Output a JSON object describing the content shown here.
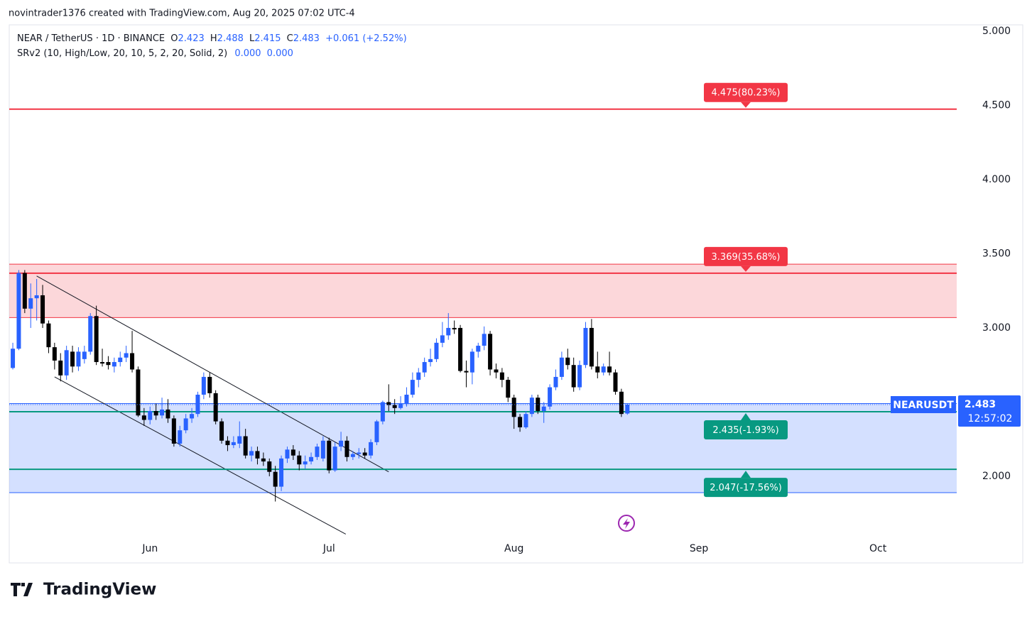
{
  "header": {
    "credit": "novintrader1376 created with TradingView.com, Aug 20, 2025 07:02 UTC-4",
    "brand": "TradingView"
  },
  "legend": {
    "symbol": "NEAR / TetherUS · 1D · BINANCE",
    "o": "O",
    "h": "H",
    "l": "L",
    "c": "C",
    "change": "+0.061 (+2.52%)",
    "indicator": "SRv2 (10, High/Low, 20, 10, 5, 2, 20, Solid, 2)",
    "ind_v1": "0.000",
    "ind_v2": "0.000"
  },
  "price_tag": {
    "ticker": "NEARUSDT",
    "countdown": "12:57:02"
  },
  "chart_data": {
    "type": "candlestick",
    "up_color": "#2962ff",
    "down_color": "#000000",
    "open": [
      2.73,
      2.86,
      3.37,
      3.13,
      3.2,
      3.22,
      3.03,
      2.87,
      2.78,
      2.68,
      2.84,
      2.74,
      2.79,
      2.84,
      3.08,
      2.77,
      2.77,
      2.74,
      2.77,
      2.8,
      2.83,
      2.72,
      2.41,
      2.38,
      2.44,
      2.41,
      2.45,
      2.39,
      2.22,
      2.31,
      2.39,
      2.42,
      2.55,
      2.67,
      2.56,
      2.37,
      2.24,
      2.21,
      2.22,
      2.27,
      2.14,
      2.17,
      2.12,
      2.1,
      2.03,
      1.93,
      2.12,
      2.18,
      2.14,
      2.08,
      2.1,
      2.13,
      2.12,
      2.24,
      2.04,
      2.2,
      2.24,
      2.13,
      2.15,
      2.16,
      2.14,
      2.23,
      2.37,
      2.5,
      2.48,
      2.46,
      2.49,
      2.55,
      2.65,
      2.7,
      2.77,
      2.79,
      2.9,
      2.95,
      3.0,
      3.0,
      2.71,
      2.7,
      2.84,
      2.88,
      2.96,
      2.72,
      2.7,
      2.65,
      2.53,
      2.4,
      2.33,
      2.42,
      2.53,
      2.44,
      2.47,
      2.6,
      2.67,
      2.8,
      2.75,
      2.6,
      2.75,
      3.0,
      2.74,
      2.7,
      2.74,
      2.7,
      2.57,
      2.423
    ],
    "high": [
      2.9,
      3.39,
      3.39,
      3.3,
      3.33,
      3.29,
      3.05,
      2.9,
      2.83,
      2.88,
      2.88,
      2.87,
      2.88,
      3.1,
      3.15,
      2.86,
      2.81,
      2.8,
      2.84,
      2.88,
      2.98,
      2.74,
      2.46,
      2.47,
      2.49,
      2.53,
      2.52,
      2.41,
      2.34,
      2.42,
      2.46,
      2.57,
      2.7,
      2.7,
      2.58,
      2.39,
      2.27,
      2.27,
      2.37,
      2.32,
      2.2,
      2.2,
      2.16,
      2.12,
      2.07,
      2.14,
      2.2,
      2.21,
      2.17,
      2.14,
      2.16,
      2.22,
      2.27,
      2.26,
      2.23,
      2.3,
      2.27,
      2.17,
      2.19,
      2.19,
      2.25,
      2.38,
      2.51,
      2.62,
      2.52,
      2.54,
      2.6,
      2.7,
      2.73,
      2.8,
      2.86,
      2.93,
      3.04,
      3.1,
      3.05,
      3.02,
      2.78,
      2.86,
      2.9,
      3.01,
      2.98,
      2.76,
      2.73,
      2.67,
      2.55,
      2.42,
      2.44,
      2.55,
      2.55,
      2.5,
      2.62,
      2.72,
      2.84,
      2.86,
      2.8,
      2.78,
      3.04,
      3.06,
      2.84,
      2.76,
      2.84,
      2.72,
      2.59,
      2.488
    ],
    "low": [
      2.72,
      2.85,
      3.1,
      3.0,
      3.05,
      3.0,
      2.83,
      2.72,
      2.64,
      2.65,
      2.7,
      2.71,
      2.76,
      2.82,
      2.75,
      2.74,
      2.72,
      2.7,
      2.74,
      2.77,
      2.7,
      2.4,
      2.34,
      2.35,
      2.38,
      2.39,
      2.36,
      2.2,
      2.2,
      2.29,
      2.36,
      2.4,
      2.52,
      2.53,
      2.35,
      2.22,
      2.17,
      2.19,
      2.19,
      2.12,
      2.1,
      2.08,
      2.07,
      2.0,
      1.83,
      1.9,
      2.09,
      2.11,
      2.04,
      2.05,
      2.08,
      2.11,
      2.1,
      2.02,
      2.03,
      2.17,
      2.1,
      2.11,
      2.12,
      2.12,
      2.12,
      2.21,
      2.35,
      2.44,
      2.42,
      2.45,
      2.47,
      2.53,
      2.6,
      2.67,
      2.74,
      2.77,
      2.87,
      2.92,
      2.96,
      2.7,
      2.6,
      2.62,
      2.8,
      2.85,
      2.68,
      2.66,
      2.6,
      2.5,
      2.32,
      2.3,
      2.32,
      2.4,
      2.42,
      2.36,
      2.45,
      2.58,
      2.65,
      2.72,
      2.57,
      2.58,
      2.73,
      2.72,
      2.66,
      2.68,
      2.68,
      2.55,
      2.4,
      2.415
    ],
    "close": [
      2.86,
      3.37,
      3.13,
      3.2,
      3.22,
      3.03,
      2.87,
      2.78,
      2.68,
      2.85,
      2.74,
      2.84,
      2.84,
      3.08,
      2.77,
      2.76,
      2.75,
      2.77,
      2.8,
      2.83,
      2.72,
      2.41,
      2.38,
      2.44,
      2.41,
      2.45,
      2.39,
      2.22,
      2.31,
      2.39,
      2.42,
      2.55,
      2.67,
      2.56,
      2.37,
      2.24,
      2.21,
      2.23,
      2.27,
      2.14,
      2.17,
      2.12,
      2.1,
      2.03,
      1.93,
      2.12,
      2.18,
      2.14,
      2.08,
      2.1,
      2.13,
      2.2,
      2.24,
      2.04,
      2.2,
      2.24,
      2.13,
      2.15,
      2.16,
      2.14,
      2.23,
      2.37,
      2.5,
      2.48,
      2.46,
      2.49,
      2.55,
      2.65,
      2.7,
      2.77,
      2.79,
      2.9,
      2.95,
      3.0,
      2.99,
      2.71,
      2.7,
      2.84,
      2.88,
      2.96,
      2.72,
      2.7,
      2.65,
      2.53,
      2.4,
      2.33,
      2.42,
      2.53,
      2.44,
      2.47,
      2.6,
      2.67,
      2.8,
      2.75,
      2.6,
      2.75,
      3.0,
      2.74,
      2.7,
      2.74,
      2.7,
      2.57,
      2.42,
      2.483
    ],
    "xlim": [
      -0.6,
      158.2
    ],
    "xticks": [
      {
        "value": 23,
        "label": "Jun"
      },
      {
        "value": 53,
        "label": "Jul"
      },
      {
        "value": 84,
        "label": "Aug"
      },
      {
        "value": 115,
        "label": "Sep"
      },
      {
        "value": 145,
        "label": "Oct"
      }
    ],
    "ylim": [
      1.416,
      5.043
    ],
    "yticks": [
      {
        "value": 2,
        "label": "2.000"
      },
      {
        "value": 3,
        "label": "3.000"
      },
      {
        "value": 3.5,
        "label": "3.500"
      },
      {
        "value": 4,
        "label": "4.000"
      },
      {
        "value": 4.5,
        "label": "4.500"
      },
      {
        "value": 5,
        "label": "5.000"
      }
    ],
    "zones": [
      {
        "top": 3.43,
        "bottom": 3.07,
        "color": "#f23645"
      },
      {
        "top": 2.49,
        "bottom": 1.89,
        "color": "#2962ff"
      }
    ],
    "levels": [
      {
        "value": 4.475,
        "label": "4.475(80.23%)",
        "color": "#f23645"
      },
      {
        "value": 3.369,
        "label": "3.369(35.68%)",
        "color": "#f23645"
      },
      {
        "value": 2.435,
        "label": "2.435(-1.93%)",
        "color": "#089981"
      },
      {
        "value": 2.047,
        "label": "2.047(-17.56%)",
        "color": "#089981"
      }
    ],
    "trendlines": [
      {
        "x": [
          4,
          63
        ],
        "y": [
          3.35,
          2.03
        ]
      },
      {
        "x": [
          7,
          55.8
        ],
        "y": [
          2.67,
          1.61
        ]
      }
    ]
  }
}
